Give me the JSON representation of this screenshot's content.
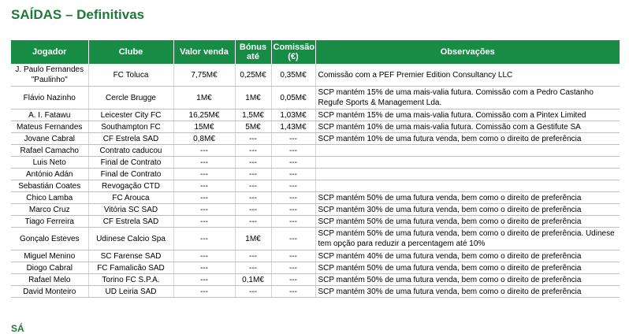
{
  "title": "SAÍDAS – Definitivas",
  "headers": {
    "jogador": "Jogador",
    "clube": "Clube",
    "valor_venda": "Valor venda",
    "bonus": "Bónus até",
    "comissao": "Comissão (€)",
    "observacoes": "Observações"
  },
  "rows": [
    {
      "jogador": "J. Paulo Fernandes \"Paulinho\"",
      "clube": "FC Toluca",
      "valor": "7,75M€",
      "bonus": "0,25M€",
      "comissao": "0,35M€",
      "obs": "Comissão com a PEF Premier Edition Consultancy LLC"
    },
    {
      "jogador": "Flávio Nazinho",
      "clube": "Cercle Brugge",
      "valor": "1M€",
      "bonus": "1M€",
      "comissao": "0,05M€",
      "obs": "SCP mantém 15% de uma mais-valia futura. Comissão com a Pedro Castanho Regufe Sports & Management Lda."
    },
    {
      "jogador": "A. I. Fatawu",
      "clube": "Leicester City FC",
      "valor": "16,25M€",
      "bonus": "1,5M€",
      "comissao": "1,03M€",
      "obs": "SCP mantém 15% de uma mais-valia futura. Comissão com a Pintex Limited"
    },
    {
      "jogador": "Mateus Fernandes",
      "clube": "Southampton FC",
      "valor": "15M€",
      "bonus": "5M€",
      "comissao": "1,43M€",
      "obs": "SCP mantém 10% de uma mais-valia futura. Comissão com a Gestifute SA"
    },
    {
      "jogador": "Jovane Cabral",
      "clube": "CF Estrela SAD",
      "valor": "0,8M€",
      "bonus": "---",
      "comissao": "---",
      "obs": "SCP mantém 10% de uma futura venda, bem como o direito de preferência"
    },
    {
      "jogador": "Rafael Camacho",
      "clube": "Contrato caducou",
      "valor": "---",
      "bonus": "---",
      "comissao": "---",
      "obs": ""
    },
    {
      "jogador": "Luis Neto",
      "clube": "Final de Contrato",
      "valor": "---",
      "bonus": "---",
      "comissao": "---",
      "obs": ""
    },
    {
      "jogador": "António Adán",
      "clube": "Final de Contrato",
      "valor": "---",
      "bonus": "---",
      "comissao": "---",
      "obs": ""
    },
    {
      "jogador": "Sebastián Coates",
      "clube": "Revogação CTD",
      "valor": "---",
      "bonus": "---",
      "comissao": "---",
      "obs": ""
    },
    {
      "jogador": "Chico Lamba",
      "clube": "FC Arouca",
      "valor": "---",
      "bonus": "---",
      "comissao": "---",
      "obs": "SCP mantém 50% de uma futura venda, bem como o direito de preferência"
    },
    {
      "jogador": "Marco Cruz",
      "clube": "Vitória SC SAD",
      "valor": "---",
      "bonus": "---",
      "comissao": "---",
      "obs": "SCP mantém 30% de uma futura venda, bem como o direito de preferência"
    },
    {
      "jogador": "Tiago Ferreira",
      "clube": "CF Estrela SAD",
      "valor": "---",
      "bonus": "---",
      "comissao": "---",
      "obs": "SCP mantém 50% de uma futura venda, bem como o direito de preferência"
    },
    {
      "jogador": "Gonçalo Esteves",
      "clube": "Udinese Calcio Spa",
      "valor": "---",
      "bonus": "1M€",
      "comissao": "---",
      "obs": "SCP mantém 50% de uma futura venda, bem como o direito de preferência. Udinese tem opção para reduzir a percentagem até 10%"
    },
    {
      "jogador": "Miguel Menino",
      "clube": "SC Farense SAD",
      "valor": "---",
      "bonus": "---",
      "comissao": "---",
      "obs": "SCP mantém 40% de uma futura venda, bem como o direito de preferência"
    },
    {
      "jogador": "Diogo Cabral",
      "clube": "FC Famalicão SAD",
      "valor": "---",
      "bonus": "---",
      "comissao": "---",
      "obs": "SCP mantém 50% de uma futura venda, bem como o direito de preferência"
    },
    {
      "jogador": "Rafael Melo",
      "clube": "Torino FC S.P.A.",
      "valor": "---",
      "bonus": "0,1M€",
      "comissao": "---",
      "obs": "SCP mantém 50% de uma futura venda, bem como o direito de preferência"
    },
    {
      "jogador": "David Monteiro",
      "clube": "UD Leiria SAD",
      "valor": "---",
      "bonus": "---",
      "comissao": "---",
      "obs": "SCP mantém 30% de uma futura venda, bem como o direito de preferência"
    }
  ],
  "footer_fragment": "SÁ"
}
